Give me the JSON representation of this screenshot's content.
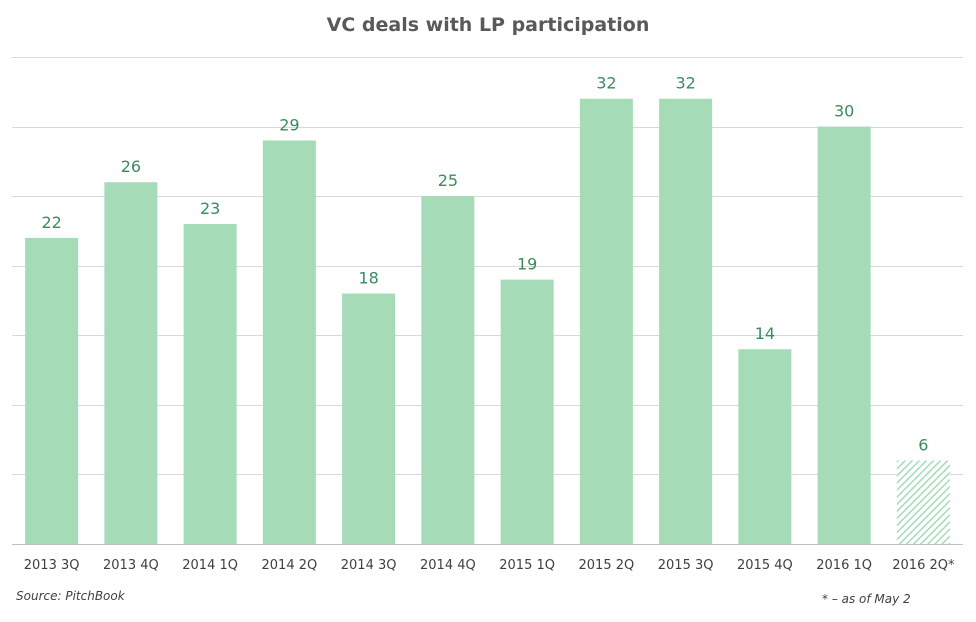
{
  "chart_data": {
    "type": "bar",
    "title": "VC deals with LP participation",
    "categories": [
      "2013 3Q",
      "2013 4Q",
      "2014 1Q",
      "2014 2Q",
      "2014 3Q",
      "2014 4Q",
      "2015 1Q",
      "2015 2Q",
      "2015 3Q",
      "2015 4Q",
      "2016 1Q",
      "2016 2Q*"
    ],
    "values": [
      22,
      26,
      23,
      29,
      18,
      25,
      19,
      32,
      32,
      14,
      30,
      6
    ],
    "partial": [
      false,
      false,
      false,
      false,
      false,
      false,
      false,
      false,
      false,
      false,
      false,
      true
    ],
    "ylim": [
      0,
      35
    ],
    "grid": true,
    "data_labels": true,
    "colors": {
      "bar": "#a6dbb7",
      "label": "#3a8c5c",
      "grid": "#d9d9d9",
      "axis": "#bfbfbf"
    }
  },
  "source": "Source: PitchBook",
  "footnote": "* – as of May 2"
}
